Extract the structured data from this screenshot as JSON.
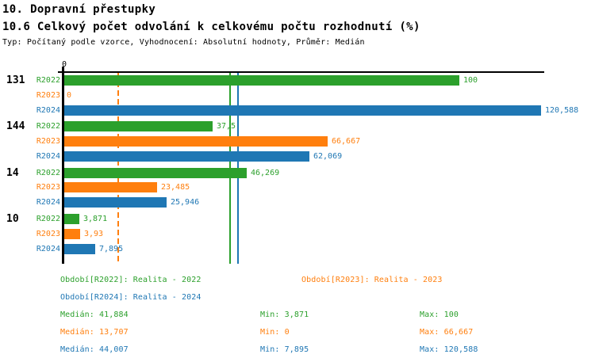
{
  "header": {
    "title": "10. Dopravní přestupky",
    "subtitle": "10.6 Celkový počet odvolání k celkovému počtu rozhodnutí (%)",
    "meta": "Typ: Počítaný podle vzorce, Vyhodnocení: Absolutní hodnoty, Průměr: Medián"
  },
  "colors": {
    "r2022": "#2CA02C",
    "r2023": "#FF7F0E",
    "r2024": "#1F77B4",
    "axis": "#000000",
    "background": "#FFFFFF"
  },
  "chart_data": {
    "type": "bar",
    "orientation": "horizontal",
    "xlabel": "",
    "ylabel": "",
    "xlim": [
      0,
      121.7
    ],
    "grid": false,
    "axis_zero_label": "0",
    "series_names": [
      "R2022",
      "R2023",
      "R2024"
    ],
    "series_color_keys": [
      "r2022",
      "r2023",
      "r2024"
    ],
    "groups": [
      {
        "label": "131",
        "values": [
          100,
          0,
          120.588
        ],
        "value_labels": [
          "100",
          "0",
          "120,588"
        ]
      },
      {
        "label": "144",
        "values": [
          37.5,
          66.667,
          62.069
        ],
        "value_labels": [
          "37,5",
          "66,667",
          "62,069"
        ]
      },
      {
        "label": "14",
        "values": [
          46.269,
          23.485,
          25.946
        ],
        "value_labels": [
          "46,269",
          "23,485",
          "25,946"
        ]
      },
      {
        "label": "10",
        "values": [
          3.871,
          3.93,
          7.895
        ],
        "value_labels": [
          "3,871",
          "3,93",
          "7,895"
        ]
      }
    ],
    "reference_lines": [
      {
        "name": "median-r2023",
        "value": 13.707,
        "color_key": "r2023",
        "style": "dashed"
      },
      {
        "name": "median-r2022",
        "value": 41.884,
        "color_key": "r2022",
        "style": "solid"
      },
      {
        "name": "median-r2024",
        "value": 44.007,
        "color_key": "r2024",
        "style": "solid"
      }
    ]
  },
  "legend": {
    "r2022": "Období[R2022]: Realita - 2022",
    "r2023": "Období[R2023]: Realita - 2023",
    "r2024": "Období[R2024]: Realita - 2024"
  },
  "stats": [
    {
      "median": "Medián: 41,884",
      "min": "Min: 3,871",
      "max": "Max: 100"
    },
    {
      "median": "Medián: 13,707",
      "min": "Min: 0",
      "max": "Max: 66,667"
    },
    {
      "median": "Medián: 44,007",
      "min": "Min: 7,895",
      "max": "Max: 120,588"
    }
  ]
}
